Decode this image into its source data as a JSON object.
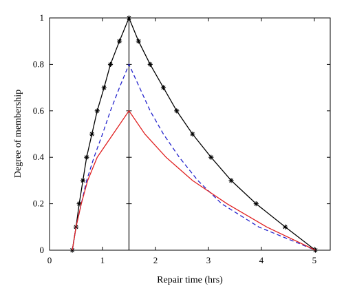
{
  "chart_data": {
    "type": "line",
    "title": "",
    "xlabel": "Repair time (hrs)",
    "ylabel": "Degree of membership",
    "xlim": [
      0,
      5.3
    ],
    "ylim": [
      0,
      1
    ],
    "xticks": [
      0,
      1,
      2,
      3,
      4,
      5
    ],
    "yticks": [
      0,
      0.2,
      0.4,
      0.6,
      0.8,
      1
    ],
    "xtick_labels": [
      "0",
      "1",
      "2",
      "3",
      "4",
      "5"
    ],
    "ytick_labels": [
      "0",
      "0.2",
      "0.4",
      "0.6",
      "0.8",
      "1"
    ],
    "grid": false,
    "vertical_line": {
      "x": 1.5,
      "color": "#000000"
    },
    "series": [
      {
        "style": "solid-star",
        "color": "#000000",
        "points": [
          [
            0.43,
            0
          ],
          [
            0.5,
            0.1
          ],
          [
            0.56,
            0.2
          ],
          [
            0.63,
            0.3
          ],
          [
            0.7,
            0.4
          ],
          [
            0.8,
            0.5
          ],
          [
            0.9,
            0.6
          ],
          [
            1.03,
            0.7
          ],
          [
            1.15,
            0.8
          ],
          [
            1.32,
            0.9
          ],
          [
            1.5,
            1.0
          ],
          [
            1.68,
            0.9
          ],
          [
            1.9,
            0.8
          ],
          [
            2.15,
            0.7
          ],
          [
            2.4,
            0.6
          ],
          [
            2.7,
            0.5
          ],
          [
            3.05,
            0.4
          ],
          [
            3.43,
            0.3
          ],
          [
            3.9,
            0.2
          ],
          [
            4.45,
            0.1
          ],
          [
            5.02,
            0
          ]
        ]
      },
      {
        "style": "dashed",
        "color": "#2222cc",
        "points": [
          [
            0.43,
            0
          ],
          [
            0.5,
            0.1
          ],
          [
            0.6,
            0.2
          ],
          [
            0.7,
            0.3
          ],
          [
            0.84,
            0.4
          ],
          [
            1.0,
            0.5
          ],
          [
            1.15,
            0.6
          ],
          [
            1.32,
            0.7
          ],
          [
            1.5,
            0.8
          ],
          [
            1.7,
            0.7
          ],
          [
            1.9,
            0.6
          ],
          [
            2.15,
            0.5
          ],
          [
            2.45,
            0.4
          ],
          [
            2.8,
            0.3
          ],
          [
            3.25,
            0.2
          ],
          [
            3.95,
            0.1
          ],
          [
            5.02,
            0
          ]
        ]
      },
      {
        "style": "solid",
        "color": "#e02020",
        "points": [
          [
            0.43,
            0
          ],
          [
            0.5,
            0.1
          ],
          [
            0.6,
            0.2
          ],
          [
            0.72,
            0.3
          ],
          [
            0.9,
            0.4
          ],
          [
            1.2,
            0.5
          ],
          [
            1.5,
            0.6
          ],
          [
            1.8,
            0.5
          ],
          [
            2.2,
            0.4
          ],
          [
            2.7,
            0.3
          ],
          [
            3.35,
            0.2
          ],
          [
            4.1,
            0.1
          ],
          [
            5.02,
            0
          ]
        ]
      }
    ]
  }
}
